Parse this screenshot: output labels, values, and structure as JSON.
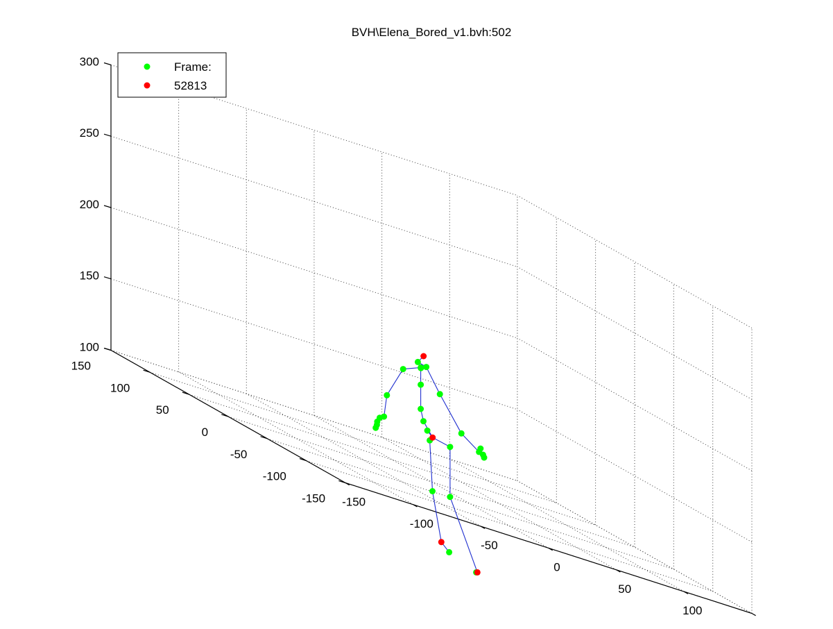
{
  "chart_data": {
    "type": "scatter",
    "title": "BVH\\Elena_Bored_v1.bvh:502",
    "legend": {
      "placement": "top-left",
      "entries": [
        {
          "label": "Frame:",
          "color": "#00ff00"
        },
        {
          "label": "52813",
          "color": "#ff0000"
        }
      ]
    },
    "axes": {
      "x_ticks": [
        "-150",
        "-100",
        "-50",
        "0",
        "50",
        "100",
        "150"
      ],
      "y_ticks": [
        "-150",
        "-100",
        "-50",
        "0",
        "50",
        "100",
        "150"
      ],
      "z_ticks": [
        "100",
        "150",
        "200",
        "250",
        "300"
      ],
      "xlim": [
        -150,
        150
      ],
      "ylim": [
        -150,
        150
      ],
      "zlim": [
        100,
        300
      ],
      "grid": true
    },
    "series": [
      {
        "color": "#00ff00",
        "points": [
          [
            -6,
            7,
            180
          ],
          [
            -2,
            10,
            176
          ],
          [
            -5,
            5,
            177
          ],
          [
            2,
            10,
            178
          ],
          [
            -18,
            5,
            172
          ],
          [
            -5,
            5,
            165
          ],
          [
            12,
            10,
            162
          ],
          [
            -30,
            5,
            150
          ],
          [
            -5,
            5,
            148
          ],
          [
            25,
            5,
            140
          ],
          [
            -35,
            0,
            135
          ],
          [
            -37,
            2,
            133
          ],
          [
            -40,
            0,
            130
          ],
          [
            -42,
            -3,
            128
          ],
          [
            -44,
            -5,
            126
          ],
          [
            -3,
            5,
            140
          ],
          [
            -3,
            0,
            135
          ],
          [
            -7,
            -10,
            130
          ],
          [
            8,
            -10,
            130
          ],
          [
            38,
            5,
            131
          ],
          [
            42,
            10,
            133
          ],
          [
            45,
            12,
            129
          ],
          [
            47,
            14,
            127
          ],
          [
            -5,
            -10,
            95
          ],
          [
            8,
            -10,
            95
          ],
          [
            -10,
            -40,
            60
          ],
          [
            10,
            -40,
            52
          ]
        ]
      },
      {
        "color": "#ff0000",
        "points": [
          [
            0,
            10,
            185
          ],
          [
            -2,
            -5,
            132
          ],
          [
            -10,
            -30,
            64
          ],
          [
            12,
            -38,
            52
          ]
        ]
      }
    ]
  }
}
